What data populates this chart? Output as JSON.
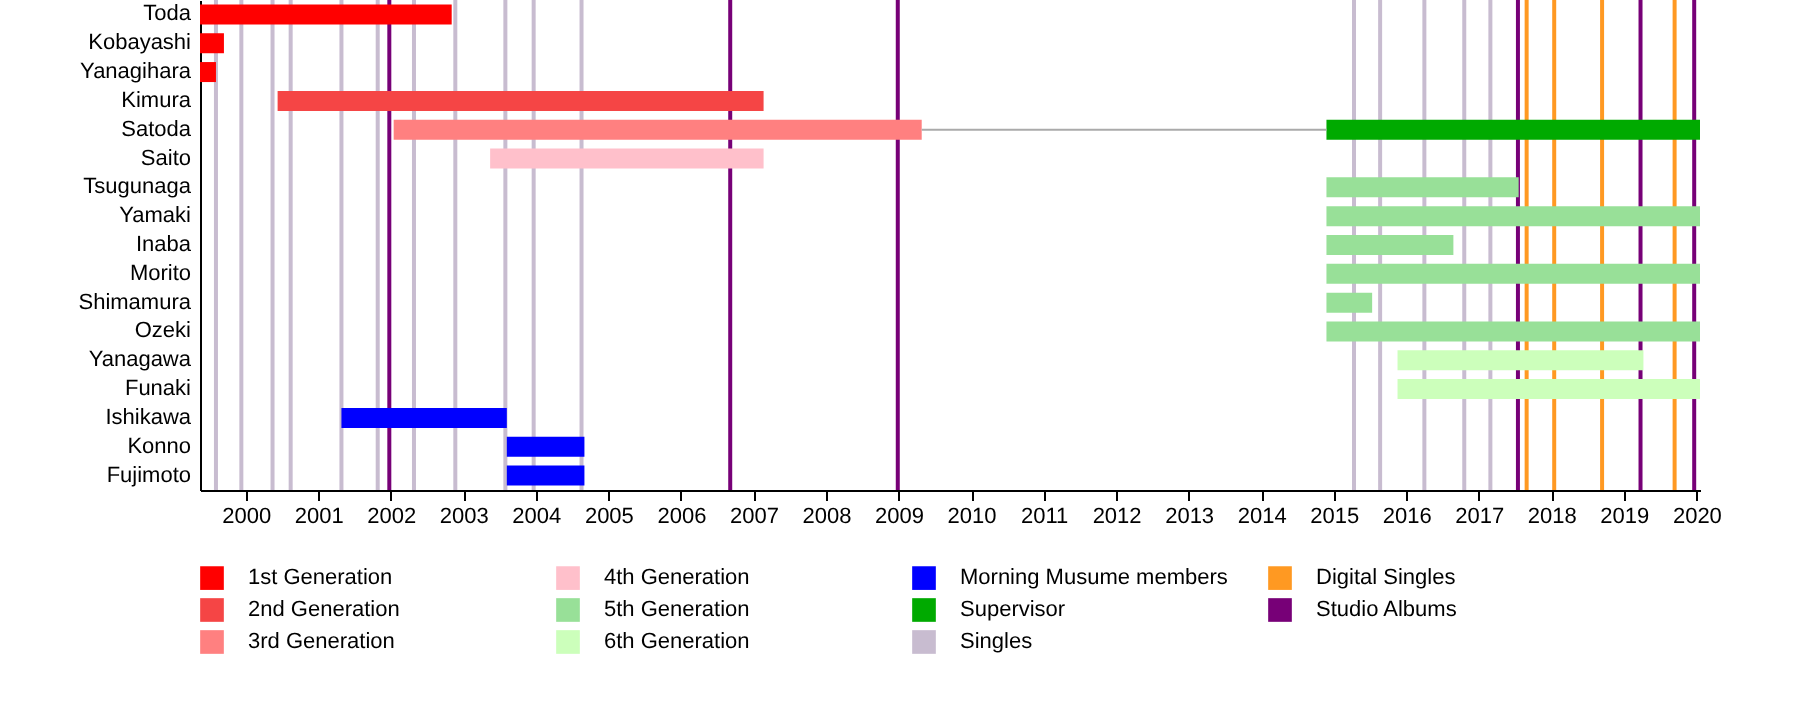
{
  "chart_data": {
    "type": "bar",
    "orientation": "horizontal",
    "legend": "bottom",
    "categories": [
      "Toda",
      "Kobayashi",
      "Yanagihara",
      "Kimura",
      "Satoda",
      "Saito",
      "Tsugunaga",
      "Yamaki",
      "Inaba",
      "Morito",
      "Shimamura",
      "Ozeki",
      "Yanagawa",
      "Funaki",
      "Ishikawa",
      "Konno",
      "Fujimoto"
    ],
    "xlim": [
      1999.37,
      2020.05
    ],
    "xticks": [
      2000,
      2001,
      2002,
      2003,
      2004,
      2005,
      2006,
      2007,
      2008,
      2009,
      2010,
      2011,
      2012,
      2013,
      2014,
      2015,
      2016,
      2017,
      2018,
      2019,
      2020
    ],
    "series": [
      {
        "name": "1st Generation",
        "color": "#ff0000",
        "base": [
          1999.37,
          1999.37,
          1999.37,
          null,
          null,
          null,
          null,
          null,
          null,
          null,
          null,
          null,
          null,
          null,
          null,
          null,
          null
        ],
        "values": [
          3.47,
          0.33,
          0.22,
          null,
          null,
          null,
          null,
          null,
          null,
          null,
          null,
          null,
          null,
          null,
          null,
          null,
          null
        ]
      },
      {
        "name": "2nd Generation",
        "color": "#f54545",
        "base": [
          null,
          null,
          null,
          2000.44,
          null,
          null,
          null,
          null,
          null,
          null,
          null,
          null,
          null,
          null,
          null,
          null,
          null
        ],
        "values": [
          null,
          null,
          null,
          6.7,
          null,
          null,
          null,
          null,
          null,
          null,
          null,
          null,
          null,
          null,
          null,
          null,
          null
        ]
      },
      {
        "name": "3rd Generation",
        "color": "#ff8080",
        "base": [
          null,
          null,
          null,
          null,
          2002.04,
          null,
          null,
          null,
          null,
          null,
          null,
          null,
          null,
          null,
          null,
          null,
          null
        ],
        "values": [
          null,
          null,
          null,
          null,
          7.28,
          null,
          null,
          null,
          null,
          null,
          null,
          null,
          null,
          null,
          null,
          null,
          null
        ]
      },
      {
        "name": "4th Generation",
        "color": "#ffc0cb",
        "base": [
          null,
          null,
          null,
          null,
          null,
          2003.37,
          null,
          null,
          null,
          null,
          null,
          null,
          null,
          null,
          null,
          null,
          null
        ],
        "values": [
          null,
          null,
          null,
          null,
          null,
          3.77,
          null,
          null,
          null,
          null,
          null,
          null,
          null,
          null,
          null,
          null,
          null
        ]
      },
      {
        "name": "5th Generation",
        "color": "#98e098",
        "base": [
          null,
          null,
          null,
          null,
          null,
          null,
          2014.9,
          2014.9,
          2014.9,
          2014.9,
          2014.9,
          2014.9,
          null,
          null,
          null,
          null,
          null
        ],
        "values": [
          null,
          null,
          null,
          null,
          null,
          null,
          2.65,
          5.15,
          1.75,
          5.15,
          0.63,
          5.15,
          null,
          null,
          null,
          null,
          null
        ]
      },
      {
        "name": "6th Generation",
        "color": "#ccffbb",
        "base": [
          null,
          null,
          null,
          null,
          null,
          null,
          null,
          null,
          null,
          null,
          null,
          null,
          2015.88,
          2015.88,
          null,
          null,
          null
        ],
        "values": [
          null,
          null,
          null,
          null,
          null,
          null,
          null,
          null,
          null,
          null,
          null,
          null,
          3.39,
          4.17,
          null,
          null,
          null
        ]
      },
      {
        "name": "Morning Musume members",
        "color": "#0000ff",
        "base": [
          null,
          null,
          null,
          null,
          null,
          null,
          null,
          null,
          null,
          null,
          null,
          null,
          null,
          null,
          2001.32,
          2003.6,
          2003.6
        ],
        "values": [
          null,
          null,
          null,
          null,
          null,
          null,
          null,
          null,
          null,
          null,
          null,
          null,
          null,
          null,
          2.28,
          1.07,
          1.07
        ]
      },
      {
        "name": "Supervisor",
        "color": "#00aa00",
        "base": [
          null,
          null,
          null,
          null,
          2014.9,
          null,
          null,
          null,
          null,
          null,
          null,
          null,
          null,
          null,
          null,
          null,
          null
        ],
        "values": [
          null,
          null,
          null,
          null,
          5.15,
          null,
          null,
          null,
          null,
          null,
          null,
          null,
          null,
          null,
          null,
          null,
          null
        ]
      },
      {
        "color": "#aaaaaa",
        "base": [
          null,
          null,
          null,
          null,
          2009.32,
          null,
          null,
          null,
          null,
          null,
          null,
          null,
          null,
          null,
          null,
          null,
          null
        ],
        "values": [
          null,
          null,
          null,
          null,
          5.58,
          null,
          null,
          null,
          null,
          null,
          null,
          null,
          null,
          null,
          null,
          null,
          null
        ]
      }
    ],
    "ref_lines": [
      {
        "axis": "x",
        "value": 1999.59,
        "label": "Singles",
        "color": "#c8bcd0"
      },
      {
        "axis": "x",
        "value": 1999.94,
        "color": "#c8bcd0"
      },
      {
        "axis": "x",
        "value": 2000.37,
        "color": "#c8bcd0"
      },
      {
        "axis": "x",
        "value": 2000.62,
        "color": "#c8bcd0"
      },
      {
        "axis": "x",
        "value": 2001.32,
        "color": "#c8bcd0"
      },
      {
        "axis": "x",
        "value": 2001.82,
        "color": "#c8bcd0"
      },
      {
        "axis": "x",
        "value": 2002.32,
        "color": "#c8bcd0"
      },
      {
        "axis": "x",
        "value": 2002.89,
        "color": "#c8bcd0"
      },
      {
        "axis": "x",
        "value": 2003.58,
        "color": "#c8bcd0"
      },
      {
        "axis": "x",
        "value": 2003.97,
        "color": "#c8bcd0"
      },
      {
        "axis": "x",
        "value": 2004.63,
        "color": "#c8bcd0"
      },
      {
        "axis": "x",
        "value": 2015.28,
        "color": "#c8bcd0"
      },
      {
        "axis": "x",
        "value": 2015.64,
        "color": "#c8bcd0"
      },
      {
        "axis": "x",
        "value": 2016.25,
        "color": "#c8bcd0"
      },
      {
        "axis": "x",
        "value": 2016.8,
        "color": "#c8bcd0"
      },
      {
        "axis": "x",
        "value": 2017.16,
        "color": "#c8bcd0"
      },
      {
        "axis": "x",
        "value": 2017.66,
        "label": "Digital Singles",
        "color": "#ff9922"
      },
      {
        "axis": "x",
        "value": 2018.04,
        "color": "#ff9922"
      },
      {
        "axis": "x",
        "value": 2018.7,
        "color": "#ff9922"
      },
      {
        "axis": "x",
        "value": 2019.7,
        "color": "#ff9922"
      },
      {
        "axis": "x",
        "value": 2001.98,
        "label": "Studio Albums",
        "color": "#770077"
      },
      {
        "axis": "x",
        "value": 2006.68,
        "color": "#770077"
      },
      {
        "axis": "x",
        "value": 2008.99,
        "color": "#770077"
      },
      {
        "axis": "x",
        "value": 2017.54,
        "color": "#770077"
      },
      {
        "axis": "x",
        "value": 2019.23,
        "color": "#770077"
      },
      {
        "axis": "x",
        "value": 2019.97,
        "color": "#770077"
      }
    ]
  }
}
